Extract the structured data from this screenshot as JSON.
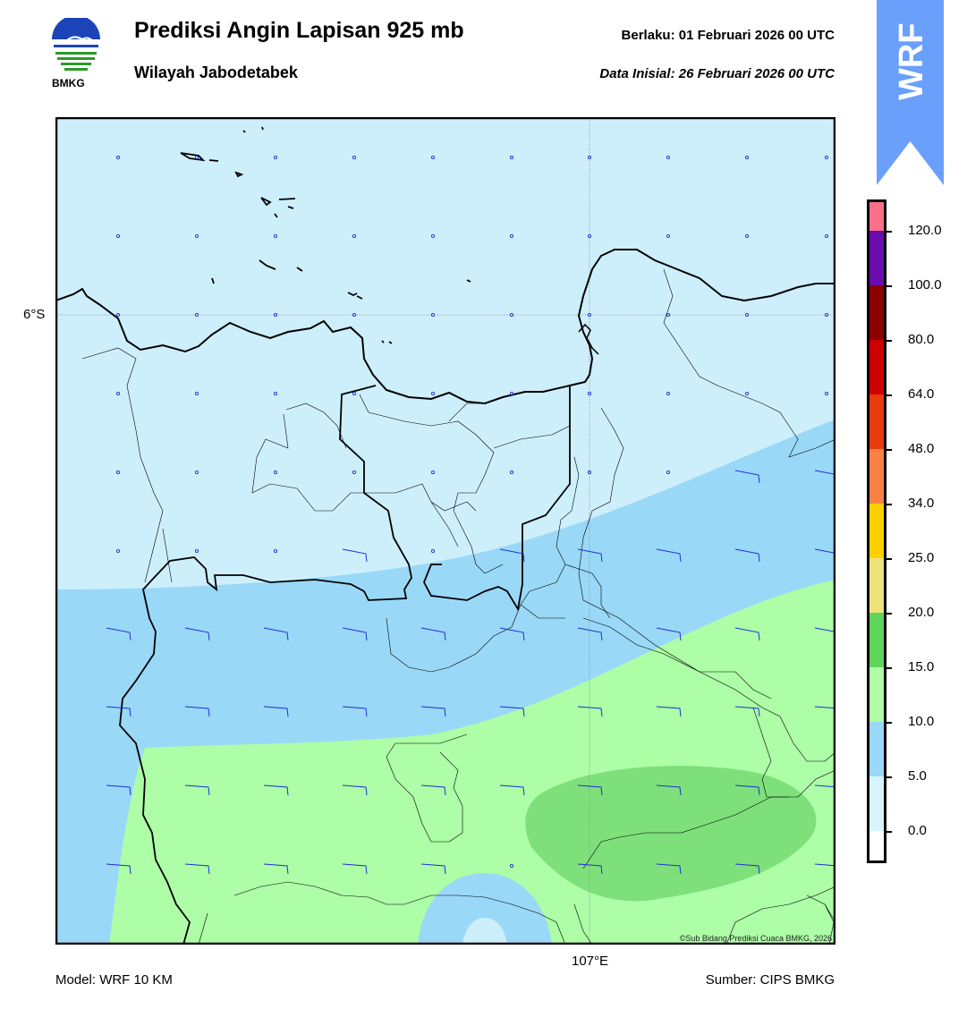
{
  "header": {
    "title": "Prediksi Angin Lapisan 925 mb",
    "subtitle": "Wilayah Jabodetabek",
    "valid_label": "Berlaku:  01 Februari 2026 00 UTC",
    "init_label": "Data Inisial:  26 Februari 2026 00 UTC",
    "logo_text": "BMKG",
    "badge_text": "WRF"
  },
  "map": {
    "lat_label": "6°S",
    "lon_label": "107°E",
    "copyright": "©Sub Bidang Prediksi Cuaca BMKG, 2026",
    "colors": {
      "calm": "#cdeffb",
      "band_5_10": "#9ad8f7",
      "band_10_15": "#adfea6",
      "band_15_20": "#7ee07a",
      "barb": "#1f2fd6",
      "coast": "#000000"
    }
  },
  "colorbar": {
    "labels": [
      "120.0",
      "100.0",
      "80.0",
      "64.0",
      "48.0",
      "34.0",
      "25.0",
      "20.0",
      "15.0",
      "10.0",
      "5.0",
      "0.0"
    ],
    "colors": [
      "#ff6f8a",
      "#6a0dad",
      "#8b0000",
      "#cc0000",
      "#e83a0c",
      "#f98145",
      "#ffd000",
      "#eee27a",
      "#5fd35a",
      "#b1fda7",
      "#9ad8f7",
      "#d8f4fe",
      "#ffffff"
    ]
  },
  "footer": {
    "model": "Model: WRF 10 KM",
    "source": "Sumber: CIPS BMKG"
  }
}
